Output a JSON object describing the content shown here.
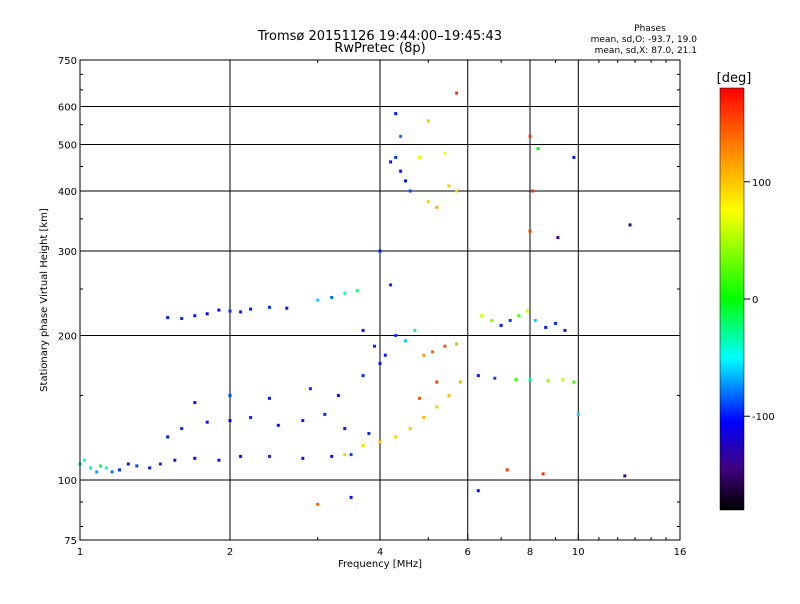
{
  "header": {
    "title_line1": "Tromsø 20151126 19:44:00–19:45:43",
    "title_line2": "RwPretec (8p)",
    "stats_heading": "Phases",
    "stats_o": "mean, sd,O: -93.7, 19.0",
    "stats_x": "mean, sd,X:  87.0, 21.1"
  },
  "chart_data": {
    "type": "scatter",
    "xlabel": "Frequency [MHz]",
    "ylabel": "Stationary phase Virtual Height [km]",
    "x_scale": "log",
    "y_scale": "log",
    "xlim": [
      1,
      16
    ],
    "ylim": [
      75,
      750
    ],
    "x_ticks": [
      1,
      2,
      4,
      6,
      8,
      10,
      16
    ],
    "x_tick_labels": [
      "1",
      "2",
      "4",
      "6",
      "8",
      "10",
      "16"
    ],
    "y_ticks": [
      75,
      100,
      200,
      300,
      400,
      500,
      600,
      750
    ],
    "y_tick_labels": [
      "75",
      "100",
      "200",
      "300",
      "400",
      "500",
      "600",
      "750"
    ],
    "x_gridlines": [
      2,
      4,
      6,
      8,
      10
    ],
    "y_gridlines": [
      100,
      200,
      300,
      400,
      500,
      600
    ],
    "colorbar": {
      "label": "[deg]",
      "range": [
        -180,
        180
      ],
      "ticks": [
        100,
        0,
        -100
      ],
      "tick_labels": [
        "100",
        "0",
        "-100"
      ],
      "colors": [
        "#ff0000",
        "#ff8000",
        "#ffff00",
        "#00ff00",
        "#00ffff",
        "#0000ff",
        "#400080",
        "#000000"
      ]
    },
    "series": [
      {
        "points": [
          [
            1.0,
            108,
            -60
          ],
          [
            1.02,
            110,
            -40
          ],
          [
            1.05,
            106,
            -30
          ],
          [
            1.08,
            104,
            -70
          ],
          [
            1.1,
            107,
            -20
          ],
          [
            1.13,
            106,
            -50
          ],
          [
            1.16,
            104,
            -80
          ],
          [
            1.2,
            105,
            -95
          ],
          [
            1.25,
            108,
            -100
          ],
          [
            1.3,
            107,
            -90
          ],
          [
            1.38,
            106,
            -100
          ],
          [
            1.45,
            108,
            -95
          ],
          [
            1.55,
            110,
            -100
          ],
          [
            1.7,
            111,
            -105
          ],
          [
            1.9,
            110,
            -100
          ],
          [
            2.1,
            112,
            -100
          ],
          [
            2.4,
            112,
            -95
          ],
          [
            2.8,
            111,
            -100
          ],
          [
            3.2,
            112,
            -100
          ],
          [
            3.5,
            113,
            -90
          ]
        ]
      },
      {
        "points": [
          [
            1.5,
            123,
            -100
          ],
          [
            1.6,
            128,
            -95
          ],
          [
            1.8,
            132,
            -100
          ],
          [
            2.0,
            133,
            -105
          ],
          [
            2.2,
            135,
            -95
          ],
          [
            2.5,
            130,
            -100
          ],
          [
            2.8,
            133,
            -100
          ],
          [
            3.1,
            137,
            -95
          ],
          [
            3.4,
            128,
            -100
          ],
          [
            3.8,
            125,
            -95
          ],
          [
            1.7,
            145,
            -100
          ],
          [
            2.0,
            150,
            -90
          ],
          [
            2.4,
            148,
            -100
          ],
          [
            2.9,
            155,
            -95
          ],
          [
            3.3,
            150,
            -100
          ],
          [
            3.7,
            165,
            -95
          ],
          [
            4.0,
            175,
            -100
          ]
        ]
      },
      {
        "points": [
          [
            1.5,
            218,
            -100
          ],
          [
            1.6,
            217,
            -95
          ],
          [
            1.7,
            220,
            -100
          ],
          [
            1.8,
            222,
            -105
          ],
          [
            1.9,
            226,
            -100
          ],
          [
            2.0,
            225,
            -95
          ],
          [
            2.1,
            224,
            -100
          ],
          [
            2.2,
            227,
            -100
          ],
          [
            2.4,
            229,
            -95
          ],
          [
            2.6,
            228,
            -100
          ],
          [
            3.0,
            237,
            -60
          ],
          [
            3.2,
            240,
            -80
          ],
          [
            3.4,
            245,
            -40
          ],
          [
            3.6,
            248,
            -20
          ]
        ]
      },
      {
        "points": [
          [
            3.7,
            205,
            -100
          ],
          [
            3.9,
            190,
            -95
          ],
          [
            4.1,
            182,
            -100
          ],
          [
            4.3,
            200,
            -90
          ],
          [
            4.5,
            195,
            -60
          ],
          [
            4.7,
            205,
            -20
          ],
          [
            4.9,
            182,
            120
          ],
          [
            5.1,
            185,
            140
          ],
          [
            5.4,
            190,
            150
          ],
          [
            5.7,
            192,
            110
          ],
          [
            4.0,
            300,
            -100
          ],
          [
            4.2,
            255,
            -95
          ]
        ]
      },
      {
        "points": [
          [
            3.4,
            113,
            100
          ],
          [
            3.7,
            118,
            90
          ],
          [
            4.0,
            120,
            100
          ],
          [
            4.3,
            123,
            95
          ],
          [
            4.6,
            128,
            100
          ],
          [
            4.9,
            135,
            105
          ],
          [
            5.2,
            142,
            95
          ],
          [
            5.5,
            150,
            100
          ],
          [
            5.8,
            160,
            110
          ],
          [
            4.8,
            148,
            150
          ],
          [
            5.2,
            160,
            160
          ]
        ]
      },
      {
        "points": [
          [
            4.2,
            460,
            -100
          ],
          [
            4.3,
            470,
            -95
          ],
          [
            4.4,
            440,
            -100
          ],
          [
            4.5,
            420,
            -100
          ],
          [
            4.6,
            400,
            -90
          ],
          [
            4.4,
            520,
            -80
          ],
          [
            4.3,
            580,
            -100
          ],
          [
            4.8,
            470,
            80
          ],
          [
            5.0,
            380,
            100
          ],
          [
            5.2,
            370,
            110
          ],
          [
            5.5,
            410,
            100
          ],
          [
            5.7,
            400,
            95
          ],
          [
            5.4,
            480,
            70
          ],
          [
            5.0,
            560,
            100
          ],
          [
            5.7,
            640,
            160
          ]
        ]
      },
      {
        "points": [
          [
            6.4,
            220,
            60
          ],
          [
            6.7,
            215,
            40
          ],
          [
            7.0,
            210,
            -100
          ],
          [
            7.3,
            215,
            -90
          ],
          [
            7.6,
            220,
            20
          ],
          [
            7.9,
            225,
            60
          ],
          [
            8.2,
            215,
            -60
          ],
          [
            8.6,
            208,
            -100
          ],
          [
            9.0,
            212,
            -95
          ],
          [
            9.4,
            205,
            -100
          ],
          [
            6.3,
            165,
            -100
          ],
          [
            6.8,
            163,
            -90
          ],
          [
            7.5,
            162,
            20
          ],
          [
            8.0,
            162,
            -30
          ],
          [
            8.7,
            161,
            40
          ],
          [
            9.3,
            162,
            60
          ],
          [
            9.8,
            160,
            20
          ]
        ]
      },
      {
        "points": [
          [
            8.0,
            520,
            160
          ],
          [
            8.3,
            490,
            0
          ],
          [
            9.8,
            470,
            -100
          ],
          [
            8.1,
            400,
            160
          ],
          [
            8.0,
            330,
            160
          ],
          [
            9.1,
            320,
            -140
          ],
          [
            12.7,
            340,
            -150
          ],
          [
            12.4,
            102,
            -140
          ],
          [
            10.0,
            137,
            -60
          ],
          [
            6.3,
            95,
            -100
          ],
          [
            3.0,
            89,
            140
          ],
          [
            3.5,
            92,
            -100
          ],
          [
            8.5,
            103,
            160
          ],
          [
            7.2,
            105,
            160
          ]
        ]
      }
    ]
  }
}
